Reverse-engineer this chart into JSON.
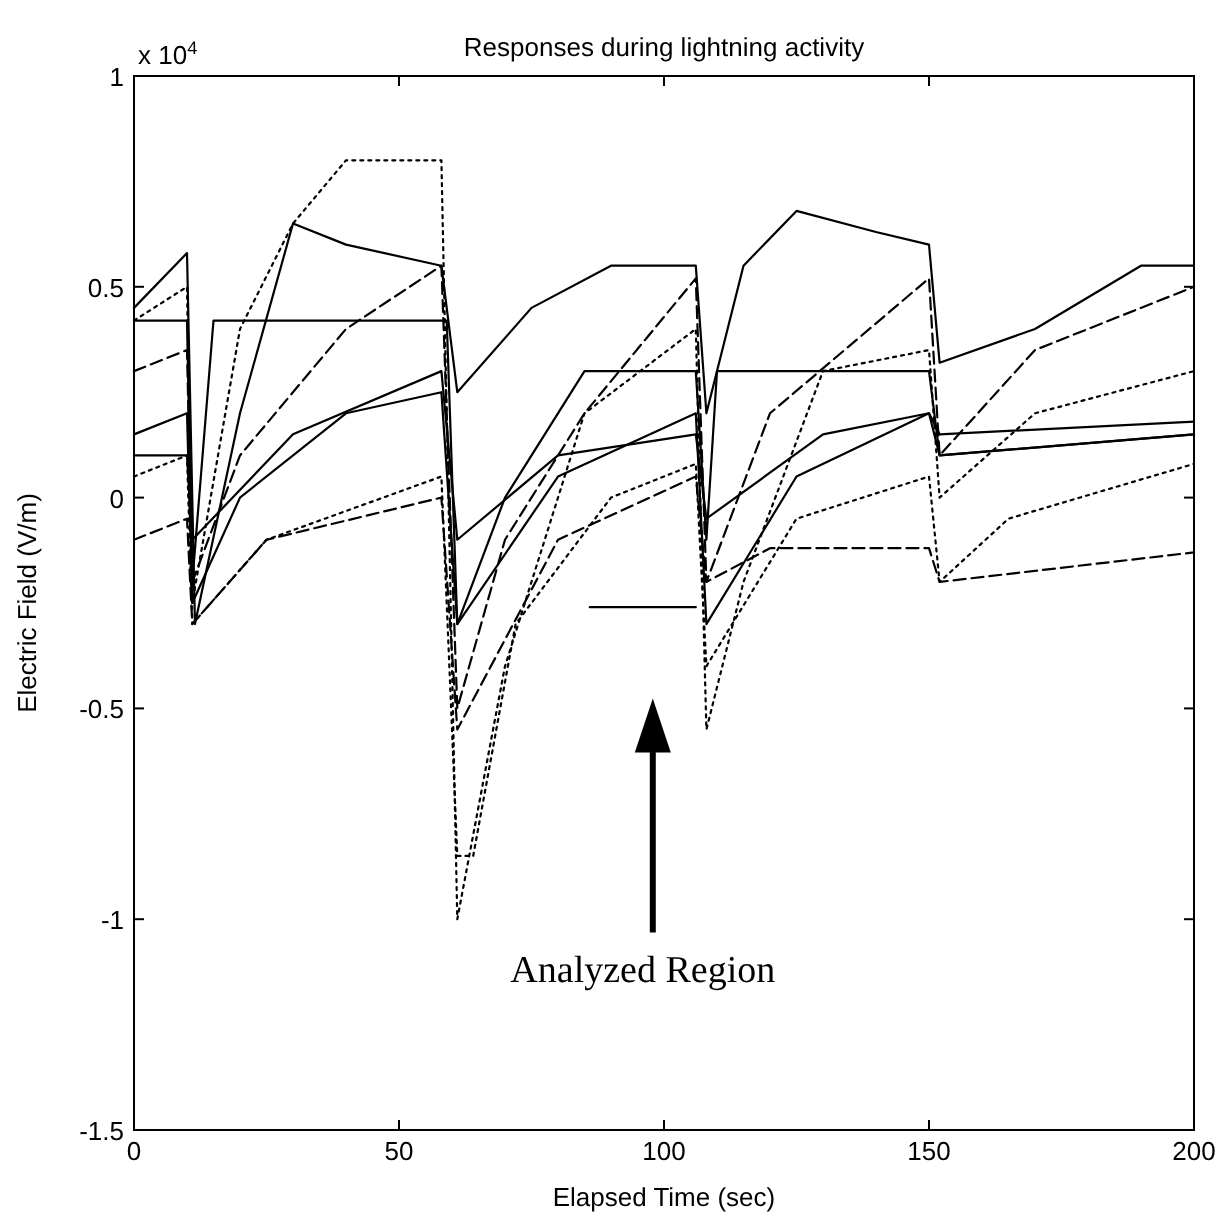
{
  "chart_data": {
    "type": "line",
    "title": "Responses during lightning activity",
    "xlabel": "Elapsed Time (sec)",
    "ylabel": "Electric Field (V/m)",
    "xlim": [
      0,
      200
    ],
    "xticks": [
      0,
      50,
      100,
      150,
      200
    ],
    "ylim": [
      -1.5,
      1
    ],
    "yticks": [
      -1.5,
      -1,
      -0.5,
      0,
      0.5,
      1
    ],
    "grid": false,
    "annotations": [
      "x 10$^{4}$",
      "Analyzed Region"
    ],
    "series": [
      {
        "color": "#000000",
        "line_style": "dotted",
        "x": [
          0,
          10,
          11,
          20,
          30,
          40,
          58,
          61,
          70,
          85,
          106,
          108,
          115,
          130,
          150,
          152,
          170,
          200
        ],
        "values": [
          0.42,
          0.5,
          -0.25,
          0.4,
          0.65,
          0.8,
          0.8,
          -1.0,
          -0.4,
          0.2,
          0.4,
          -0.55,
          -0.2,
          0.3,
          0.35,
          0.0,
          0.2,
          0.3
        ]
      },
      {
        "color": "#000000",
        "line_style": "solid",
        "x": [
          0,
          10,
          11.5,
          20,
          30,
          40,
          58,
          61,
          75,
          90,
          106,
          108,
          115,
          125,
          140,
          150,
          152,
          170,
          190,
          200
        ],
        "values": [
          0.45,
          0.58,
          -0.3,
          0.2,
          0.65,
          0.6,
          0.55,
          0.25,
          0.45,
          0.55,
          0.55,
          0.2,
          0.55,
          0.68,
          0.63,
          0.6,
          0.32,
          0.4,
          0.55,
          0.55
        ]
      },
      {
        "color": "#000000",
        "line_style": "solid",
        "x": [
          0,
          10,
          11,
          15,
          59,
          61,
          70,
          85,
          106,
          108,
          110,
          150,
          152,
          200
        ],
        "values": [
          0.42,
          0.42,
          -0.2,
          0.42,
          0.42,
          -0.3,
          0.0,
          0.3,
          0.3,
          -0.1,
          0.3,
          0.3,
          0.1,
          0.15
        ]
      },
      {
        "color": "#000000",
        "line_style": "dashed",
        "x": [
          0,
          10,
          11,
          20,
          40,
          58,
          61,
          70,
          85,
          106,
          108,
          120,
          150,
          152,
          170,
          200
        ],
        "values": [
          0.3,
          0.35,
          -0.2,
          0.1,
          0.4,
          0.55,
          -0.5,
          -0.1,
          0.2,
          0.52,
          -0.2,
          0.2,
          0.52,
          0.1,
          0.35,
          0.5
        ]
      },
      {
        "color": "#000000",
        "line_style": "solid",
        "x": [
          0,
          10,
          11,
          20,
          40,
          58,
          61,
          80,
          106,
          108,
          125,
          150,
          152,
          200
        ],
        "values": [
          0.15,
          0.2,
          -0.25,
          0.0,
          0.2,
          0.25,
          -0.3,
          0.05,
          0.2,
          -0.3,
          0.05,
          0.2,
          0.15,
          0.18
        ]
      },
      {
        "color": "#000000",
        "line_style": "dotted",
        "x": [
          0,
          10,
          11,
          25,
          58,
          61,
          64,
          72,
          90,
          106,
          108,
          125,
          150,
          152,
          165,
          200
        ],
        "values": [
          0.05,
          0.1,
          -0.3,
          -0.1,
          0.05,
          -0.85,
          -0.85,
          -0.3,
          0.0,
          0.08,
          -0.4,
          -0.05,
          0.05,
          -0.2,
          -0.05,
          0.08
        ]
      },
      {
        "color": "#000000",
        "line_style": "dashed",
        "x": [
          0,
          10,
          11,
          25,
          58,
          61,
          80,
          106,
          108,
          120,
          150,
          152,
          200
        ],
        "values": [
          -0.1,
          -0.05,
          -0.3,
          -0.1,
          0.0,
          -0.55,
          -0.1,
          0.05,
          -0.2,
          -0.12,
          -0.12,
          -0.2,
          -0.13
        ]
      },
      {
        "color": "#000000",
        "line_style": "solid",
        "x": [
          0,
          10,
          11,
          30,
          58,
          61,
          80,
          106,
          108,
          130,
          150,
          152,
          200
        ],
        "values": [
          0.1,
          0.1,
          -0.1,
          0.15,
          0.3,
          -0.1,
          0.1,
          0.15,
          -0.05,
          0.15,
          0.2,
          0.1,
          0.15
        ]
      },
      {
        "color": "#000000",
        "line_style": "solid",
        "x": [
          86,
          106
        ],
        "values": [
          -0.26,
          -0.26
        ]
      }
    ]
  }
}
